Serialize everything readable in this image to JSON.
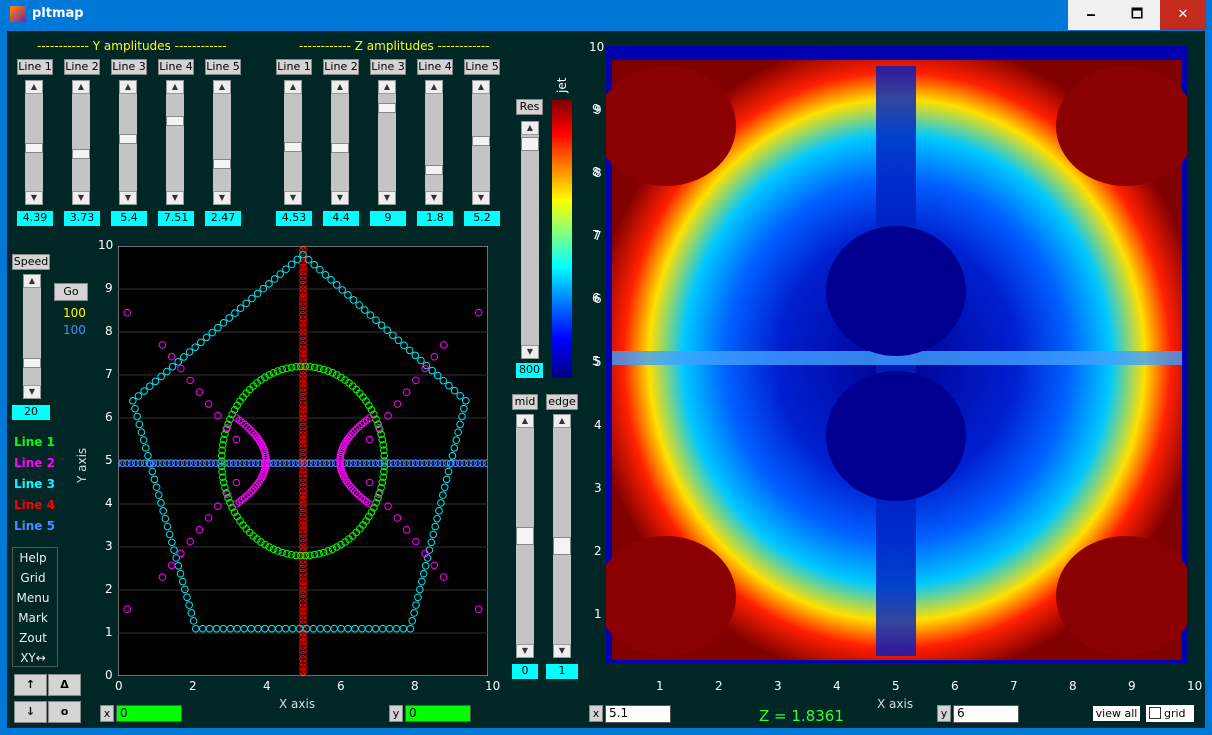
{
  "window": {
    "title": "pltmap",
    "min": "🗕",
    "max": "🗖",
    "close": "✕"
  },
  "y_amp": {
    "header": "------------ Y amplitudes ------------",
    "lines": [
      "Line 1",
      "Line 2",
      "Line 3",
      "Line 4",
      "Line 5"
    ],
    "values": [
      "4.39",
      "3.73",
      "5.4",
      "7.51",
      "2.47"
    ],
    "levels": [
      0.44,
      0.37,
      0.54,
      0.75,
      0.25
    ]
  },
  "z_amp": {
    "header": "------------ Z amplitudes ------------",
    "lines": [
      "Line 1",
      "Line 2",
      "Line 3",
      "Line 4",
      "Line 5"
    ],
    "values": [
      "4.53",
      "4.4",
      "9",
      "1.8",
      "5.2"
    ],
    "levels": [
      0.45,
      0.44,
      0.9,
      0.18,
      0.52
    ]
  },
  "res": {
    "label": "Res",
    "value": "800"
  },
  "colorbar": {
    "label": "jet",
    "ticks": [
      "9",
      "8",
      "7",
      "6",
      "5"
    ]
  },
  "speed": {
    "label": "Speed",
    "value": "20",
    "go": "Go",
    "count1": "100",
    "count2": "100"
  },
  "legend": [
    {
      "label": "Line 1",
      "color": "#00ff00"
    },
    {
      "label": "Line 2",
      "color": "#ff00ff"
    },
    {
      "label": "Line 3",
      "color": "#00ffff"
    },
    {
      "label": "Line 4",
      "color": "#ff0000"
    },
    {
      "label": "Line 5",
      "color": "#4a8cff"
    }
  ],
  "menu": [
    "Help",
    "Grid",
    "Menu",
    "Mark",
    "Zout",
    "XY↔"
  ],
  "arrows": {
    "up": "↑",
    "delta": "Δ",
    "down": "↓",
    "o": "o"
  },
  "mid": {
    "label": "mid",
    "value": "0",
    "level": 0.5
  },
  "edge": {
    "label": "edge",
    "value": "1",
    "level": 0.45
  },
  "left_plot": {
    "xlabel": "X axis",
    "ylabel": "Y axis",
    "xticks": [
      "0",
      "2",
      "4",
      "6",
      "8",
      "10"
    ],
    "yticks": [
      "0",
      "1",
      "2",
      "3",
      "4",
      "5",
      "6",
      "7",
      "8",
      "9",
      "10"
    ],
    "x_label": "x",
    "x_value": "0",
    "y_label": "y",
    "y_value": "0"
  },
  "right_plot": {
    "xlabel": "X axis",
    "xticks": [
      "1",
      "2",
      "3",
      "4",
      "5",
      "6",
      "7",
      "8",
      "9",
      "10"
    ],
    "yticks": [
      "1",
      "2",
      "3",
      "4",
      "5",
      "6",
      "7",
      "8",
      "9",
      "10"
    ],
    "x_label": "x",
    "x_value": "5.1",
    "y_label": "y",
    "y_value": "6",
    "z_readout": "Z = 1.8361",
    "view_all": "view all",
    "grid": "grid"
  },
  "chart_data": {
    "type": "scatter",
    "xlim": [
      0,
      10
    ],
    "ylim": [
      0,
      10
    ],
    "series": [
      {
        "name": "Line 1",
        "shape": "ellipse",
        "center": [
          5,
          5
        ],
        "rx": 2.2,
        "ry": 2.2
      },
      {
        "name": "Line 2",
        "shape": "hyperbola-like",
        "points": [
          [
            0.25,
            8.45
          ],
          [
            0.25,
            1.55
          ],
          [
            9.75,
            8.45
          ],
          [
            9.75,
            1.55
          ],
          [
            4,
            5
          ],
          [
            6,
            5
          ]
        ]
      },
      {
        "name": "Line 3",
        "shape": "pentagon",
        "vertices": [
          [
            5,
            9.8
          ],
          [
            9.4,
            6.4
          ],
          [
            7.9,
            1.1
          ],
          [
            2.1,
            1.1
          ],
          [
            0.4,
            6.4
          ]
        ]
      },
      {
        "name": "Line 4",
        "shape": "vertical-line",
        "x": 5,
        "y": [
          0,
          10
        ]
      },
      {
        "name": "Line 5",
        "shape": "horizontal-line",
        "y": 4.95,
        "x": [
          0,
          10
        ]
      }
    ]
  }
}
